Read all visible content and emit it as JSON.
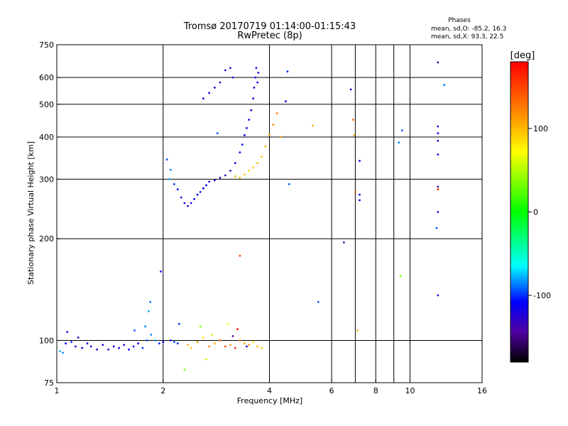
{
  "chart_data": {
    "type": "scatter",
    "title": "Tromsø 20170719 01:14:00-01:15:43",
    "subtitle": "RwPretec (8p)",
    "xlabel": "Frequency [MHz]",
    "ylabel": "Stationary phase Virtual Height [km]",
    "x_scale": "log",
    "y_scale": "log",
    "xlim": [
      1,
      16
    ],
    "ylim": [
      75,
      750
    ],
    "x_ticks": [
      1,
      2,
      4,
      6,
      8,
      10,
      16
    ],
    "x_tick_labels": [
      "1",
      "2",
      "4",
      "6",
      "8",
      "10",
      "16"
    ],
    "x_grid": [
      2,
      4,
      6,
      7,
      8,
      9,
      10
    ],
    "y_ticks": [
      75,
      100,
      200,
      300,
      400,
      500,
      600,
      750
    ],
    "y_tick_labels": [
      "75",
      "100",
      "200",
      "300",
      "400",
      "500",
      "600",
      "750"
    ],
    "y_grid": [
      100,
      200,
      300,
      400,
      500,
      600
    ],
    "grid": true,
    "phase_info": {
      "heading": "Phases",
      "o_line": "mean, sd,O: -85.2, 16.3",
      "x_line": "mean, sd,X:  93.3, 22.5"
    },
    "colorbar": {
      "label": "[deg]",
      "range": [
        -180,
        180
      ],
      "ticks": [
        100,
        0,
        -100
      ],
      "tick_labels": [
        "100",
        "0",
        "-100"
      ]
    },
    "series": [
      {
        "points": [
          [
            1.02,
            93,
            -60
          ],
          [
            1.04,
            92,
            -70
          ],
          [
            1.06,
            98,
            -100
          ],
          [
            1.07,
            106,
            -110
          ],
          [
            1.1,
            99,
            -90
          ],
          [
            1.13,
            96,
            -110
          ],
          [
            1.15,
            102,
            -120
          ],
          [
            1.18,
            95,
            -105
          ],
          [
            1.22,
            98,
            -110
          ],
          [
            1.25,
            96,
            -100
          ],
          [
            1.3,
            94,
            -115
          ],
          [
            1.35,
            97,
            -105
          ],
          [
            1.4,
            94,
            -110
          ],
          [
            1.45,
            96,
            -100
          ],
          [
            1.5,
            95,
            -115
          ],
          [
            1.55,
            97,
            -105
          ],
          [
            1.6,
            94,
            -110
          ],
          [
            1.65,
            96,
            -100
          ],
          [
            1.7,
            98,
            -110
          ],
          [
            1.75,
            95,
            -85
          ],
          [
            1.8,
            100,
            -80
          ],
          [
            1.85,
            104,
            -70
          ],
          [
            1.9,
            100,
            -65
          ],
          [
            1.95,
            98,
            -90
          ],
          [
            2.0,
            99,
            -100
          ],
          [
            2.1,
            100,
            -95
          ],
          [
            2.15,
            99,
            -85
          ],
          [
            2.2,
            98,
            -90
          ],
          [
            1.66,
            107,
            -80
          ],
          [
            1.78,
            110,
            -70
          ],
          [
            1.82,
            122,
            -60
          ],
          [
            1.84,
            130,
            -70
          ],
          [
            1.97,
            160,
            -100
          ],
          [
            2.22,
            112,
            -90
          ],
          [
            2.05,
            343,
            -80
          ],
          [
            2.1,
            320,
            -70
          ],
          [
            2.08,
            300,
            -60
          ],
          [
            2.15,
            290,
            -90
          ],
          [
            2.2,
            280,
            -95
          ],
          [
            2.25,
            265,
            -110
          ],
          [
            2.3,
            255,
            -115
          ],
          [
            2.35,
            250,
            -120
          ],
          [
            2.4,
            255,
            -110
          ],
          [
            2.45,
            262,
            -105
          ],
          [
            2.5,
            270,
            -100
          ],
          [
            2.55,
            275,
            -95
          ],
          [
            2.6,
            282,
            -100
          ],
          [
            2.65,
            288,
            -110
          ],
          [
            2.7,
            295,
            -120
          ],
          [
            2.8,
            298,
            -115
          ],
          [
            2.9,
            303,
            -125
          ],
          [
            3.0,
            308,
            -130
          ],
          [
            3.1,
            318,
            -125
          ],
          [
            3.2,
            335,
            -110
          ],
          [
            3.3,
            360,
            -100
          ],
          [
            3.35,
            380,
            -95
          ],
          [
            3.4,
            405,
            -100
          ],
          [
            3.45,
            425,
            -110
          ],
          [
            3.5,
            450,
            -105
          ],
          [
            3.55,
            480,
            -115
          ],
          [
            3.6,
            520,
            -110
          ],
          [
            3.62,
            560,
            -105
          ],
          [
            3.65,
            600,
            -115
          ],
          [
            3.67,
            640,
            -120
          ],
          [
            3.7,
            580,
            -110
          ],
          [
            3.72,
            620,
            -115
          ],
          [
            2.6,
            520,
            -110
          ],
          [
            2.7,
            540,
            -105
          ],
          [
            2.8,
            560,
            -115
          ],
          [
            2.9,
            580,
            -120
          ],
          [
            3.0,
            630,
            -125
          ],
          [
            3.1,
            640,
            -120
          ],
          [
            3.15,
            600,
            -115
          ],
          [
            2.85,
            410,
            -80
          ],
          [
            4.5,
            625,
            -90
          ],
          [
            4.45,
            510,
            -110
          ],
          [
            4.55,
            290,
            -80
          ],
          [
            5.5,
            130,
            -80
          ],
          [
            6.8,
            553,
            -110
          ],
          [
            7.2,
            340,
            -110
          ],
          [
            7.2,
            270,
            -115
          ],
          [
            7.2,
            260,
            -105
          ],
          [
            9.4,
            155,
            40
          ],
          [
            9.5,
            418,
            -80
          ],
          [
            9.3,
            385,
            -70
          ],
          [
            12.0,
            665,
            -130
          ],
          [
            12.0,
            430,
            -110
          ],
          [
            12.0,
            410,
            -100
          ],
          [
            12.0,
            390,
            -120
          ],
          [
            12.0,
            355,
            -110
          ],
          [
            12.0,
            285,
            -130
          ],
          [
            12.0,
            240,
            -100
          ],
          [
            11.9,
            215,
            -80
          ],
          [
            12.0,
            136,
            -110
          ],
          [
            12.5,
            570,
            -70
          ],
          [
            6.5,
            195,
            -140
          ]
        ]
      },
      {
        "points": [
          [
            2.35,
            97,
            110
          ],
          [
            2.4,
            95,
            100
          ],
          [
            2.5,
            99,
            120
          ],
          [
            2.6,
            102,
            90
          ],
          [
            2.7,
            96,
            130
          ],
          [
            2.75,
            104,
            60
          ],
          [
            2.8,
            98,
            110
          ],
          [
            2.9,
            100,
            140
          ],
          [
            3.0,
            96,
            150
          ],
          [
            3.1,
            97,
            120
          ],
          [
            3.2,
            95,
            160
          ],
          [
            3.3,
            100,
            130
          ],
          [
            3.4,
            98,
            110
          ],
          [
            3.5,
            97,
            120
          ],
          [
            3.6,
            99,
            90
          ],
          [
            3.7,
            96,
            110
          ],
          [
            3.8,
            95,
            100
          ],
          [
            2.55,
            110,
            40
          ],
          [
            2.65,
            88,
            60
          ],
          [
            3.05,
            112,
            80
          ],
          [
            3.25,
            108,
            170
          ],
          [
            3.15,
            103,
            -140
          ],
          [
            3.45,
            96,
            -120
          ],
          [
            2.3,
            82,
            40
          ],
          [
            3.2,
            306,
            110
          ],
          [
            3.3,
            303,
            105
          ],
          [
            3.4,
            310,
            100
          ],
          [
            3.5,
            318,
            95
          ],
          [
            3.6,
            325,
            100
          ],
          [
            3.7,
            335,
            105
          ],
          [
            3.8,
            350,
            100
          ],
          [
            3.9,
            375,
            110
          ],
          [
            4.0,
            405,
            120
          ],
          [
            4.1,
            435,
            125
          ],
          [
            4.2,
            470,
            130
          ],
          [
            4.3,
            400,
            120
          ],
          [
            5.3,
            432,
            110
          ],
          [
            6.9,
            450,
            140
          ],
          [
            6.95,
            405,
            120
          ],
          [
            7.0,
            275,
            150
          ],
          [
            7.1,
            107,
            110
          ],
          [
            3.3,
            178,
            150
          ],
          [
            12.0,
            280,
            160
          ]
        ]
      }
    ]
  }
}
